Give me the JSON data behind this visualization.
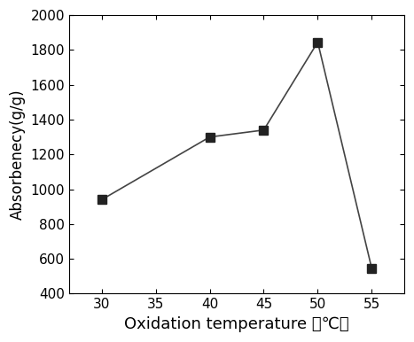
{
  "x": [
    30,
    40,
    45,
    50,
    55
  ],
  "y": [
    940,
    1300,
    1340,
    1845,
    545
  ],
  "marker": "s",
  "marker_size": 7,
  "marker_color": "#222222",
  "line_color": "#444444",
  "line_width": 1.2,
  "line_style": "-",
  "xlabel": "Oxidation temperature （℃）",
  "ylabel": "Absorbenecy(g/g)",
  "xlim": [
    27,
    58
  ],
  "ylim": [
    400,
    2000
  ],
  "xticks": [
    30,
    35,
    40,
    45,
    50,
    55
  ],
  "yticks": [
    400,
    600,
    800,
    1000,
    1200,
    1400,
    1600,
    1800,
    2000
  ],
  "xlabel_fontsize": 13,
  "ylabel_fontsize": 12,
  "tick_fontsize": 11,
  "background_color": "#ffffff"
}
